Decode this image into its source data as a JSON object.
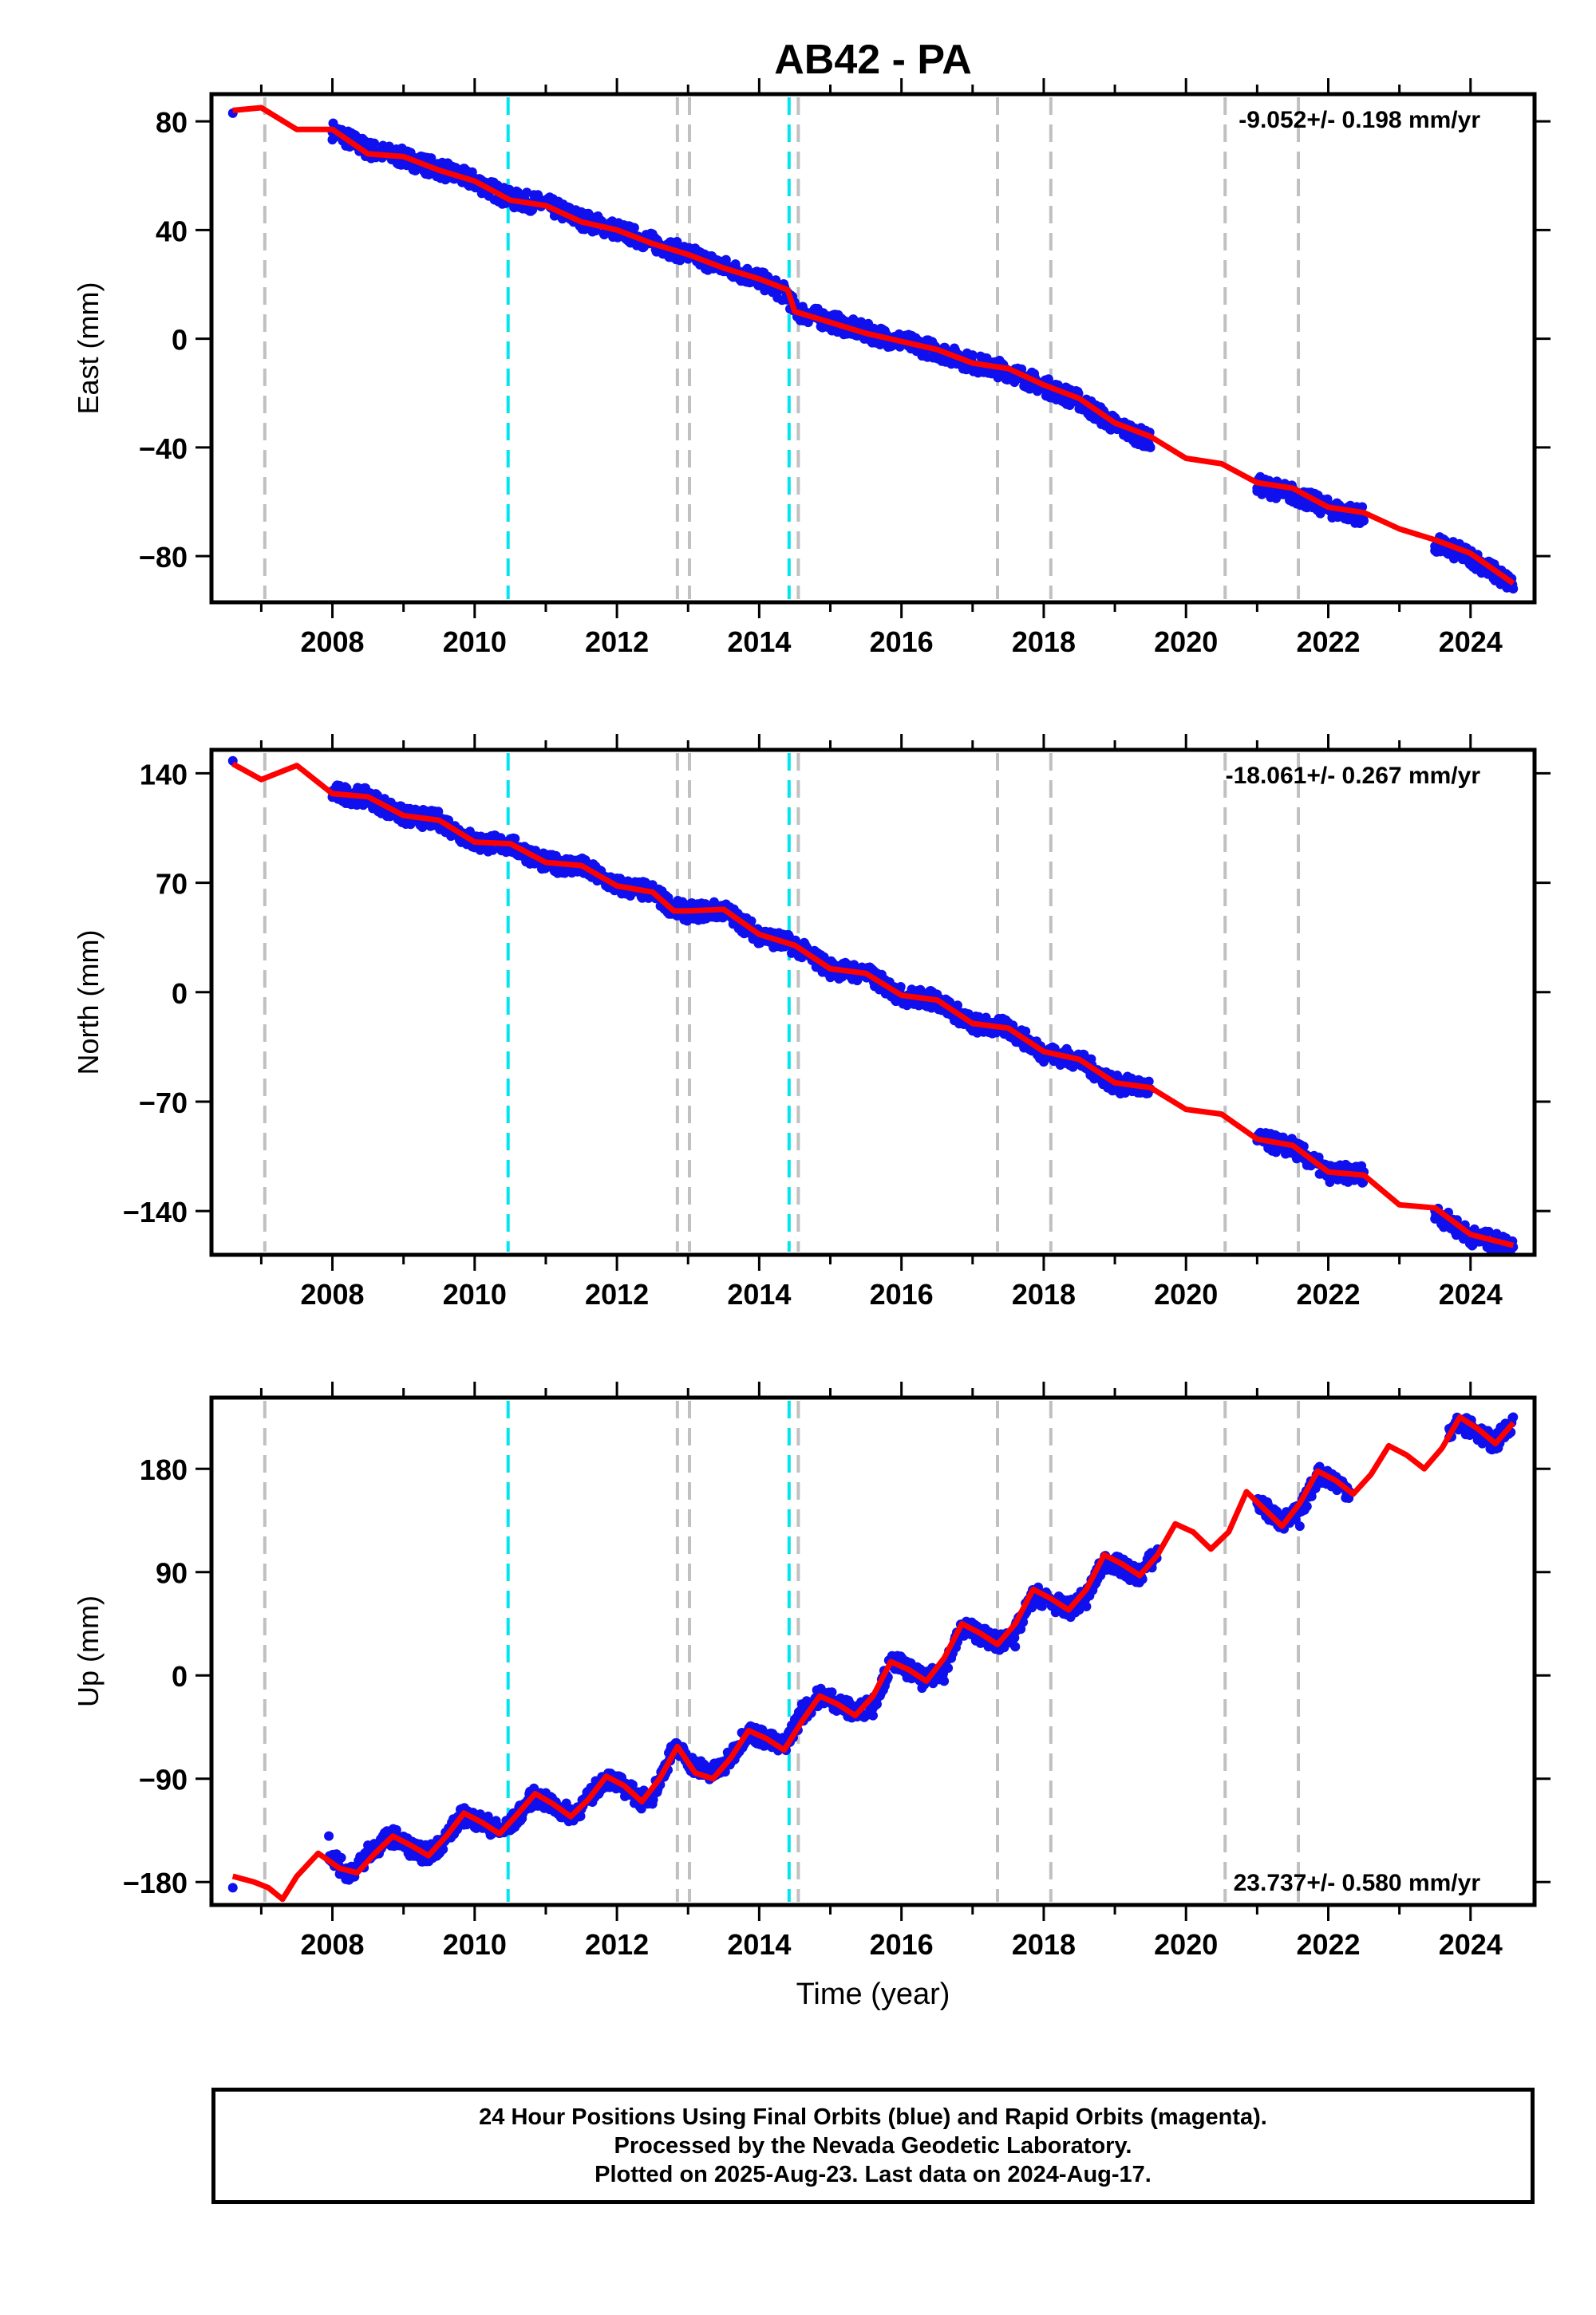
{
  "title": "AB42 - PA",
  "x_axis_label": "Time (year)",
  "x_ticks": [
    2008,
    2010,
    2012,
    2014,
    2016,
    2018,
    2020,
    2022,
    2024
  ],
  "colors": {
    "data": "#1010ee",
    "model": "#ff0000",
    "equipment_event": "#c0c0c0",
    "earthquake_event": "#00e5ee",
    "frame": "#000000"
  },
  "footer": {
    "line1": "24 Hour Positions Using Final Orbits (blue) and Rapid Orbits (magenta).",
    "line2": "Processed by the Nevada Geodetic Laboratory.",
    "line3": "Plotted on 2025-Aug-23. Last data on 2024-Aug-17."
  },
  "chart_data": [
    {
      "type": "scatter",
      "component": "east",
      "ylabel": "East (mm)",
      "rate_text": "-9.052+/- 0.198 mm/yr",
      "rate_position": "top-right",
      "xlim": [
        2006.3,
        2024.9
      ],
      "ylim": [
        -97,
        90
      ],
      "y_ticks": [
        -80,
        -40,
        0,
        40,
        80
      ],
      "event_lines_gray": [
        2007.05,
        2012.85,
        2013.02,
        2014.55,
        2017.35,
        2018.1,
        2020.55,
        2021.58
      ],
      "event_lines_cyan": [
        2010.47,
        2014.42
      ],
      "series": [
        {
          "name": "24 Hour Positions",
          "style": "points",
          "x": [
            2006.6,
            2008.0,
            2008.5,
            2009.0,
            2009.5,
            2010.0,
            2010.5,
            2011.0,
            2011.5,
            2012.0,
            2012.5,
            2013.0,
            2013.5,
            2014.0,
            2014.5,
            2015.0,
            2015.5,
            2016.0,
            2016.5,
            2017.0,
            2017.5,
            2018.0,
            2018.5,
            2019.0,
            2019.5,
            2021.0,
            2021.5,
            2022.0,
            2022.5,
            2023.5,
            2024.0,
            2024.6
          ],
          "y": [
            83,
            76,
            72,
            66,
            63,
            58,
            52,
            50,
            45,
            40,
            36,
            31,
            27,
            22,
            11,
            7,
            3,
            -1,
            -5,
            -9,
            -13,
            -18,
            -24,
            -33,
            -40,
            -55,
            -60,
            -63,
            -67,
            -78,
            -82,
            -92
          ]
        },
        {
          "name": "Model",
          "style": "line",
          "x": [
            2006.6,
            2007.0,
            2007.5,
            2008.0,
            2008.5,
            2009.0,
            2009.5,
            2010.0,
            2010.5,
            2011.0,
            2011.5,
            2012.0,
            2012.5,
            2013.0,
            2013.5,
            2014.0,
            2014.4,
            2014.5,
            2015.0,
            2015.5,
            2016.0,
            2016.5,
            2017.0,
            2017.5,
            2018.0,
            2018.5,
            2019.0,
            2019.5,
            2020.0,
            2020.5,
            2021.0,
            2021.5,
            2022.0,
            2022.5,
            2023.0,
            2023.5,
            2024.0,
            2024.6
          ],
          "y": [
            84,
            85,
            77,
            77,
            68,
            67,
            62,
            58,
            51,
            49,
            43,
            40,
            35,
            31,
            26,
            22,
            18,
            10,
            6,
            2,
            -1,
            -4,
            -9,
            -11,
            -17,
            -22,
            -31,
            -36,
            -44,
            -46,
            -53,
            -55,
            -62,
            -64,
            -70,
            -74,
            -79,
            -90
          ]
        }
      ]
    },
    {
      "type": "scatter",
      "component": "north",
      "ylabel": "North (mm)",
      "rate_text": "-18.061+/- 0.267 mm/yr",
      "rate_position": "top-right",
      "xlim": [
        2006.3,
        2024.9
      ],
      "ylim": [
        -168,
        155
      ],
      "y_ticks": [
        -140,
        -70,
        0,
        70,
        140
      ],
      "event_lines_gray": [
        2007.05,
        2012.85,
        2013.02,
        2014.55,
        2017.35,
        2018.1,
        2020.55,
        2021.58
      ],
      "event_lines_cyan": [
        2010.47,
        2014.42
      ],
      "series": [
        {
          "name": "24 Hour Positions",
          "style": "points",
          "x": [
            2006.6,
            2008.0,
            2008.5,
            2009.0,
            2009.5,
            2010.0,
            2010.5,
            2011.0,
            2011.5,
            2012.0,
            2012.5,
            2013.0,
            2013.5,
            2014.0,
            2014.5,
            2015.0,
            2015.5,
            2016.0,
            2016.5,
            2017.0,
            2017.5,
            2018.0,
            2018.5,
            2019.0,
            2019.5,
            2021.0,
            2021.5,
            2022.0,
            2022.5,
            2023.5,
            2024.0,
            2024.6
          ],
          "y": [
            148,
            128,
            124,
            112,
            110,
            96,
            93,
            82,
            80,
            68,
            64,
            50,
            52,
            36,
            30,
            15,
            12,
            -3,
            -5,
            -21,
            -23,
            -40,
            -44,
            -60,
            -62,
            -95,
            -101,
            -117,
            -115,
            -145,
            -158,
            -163
          ]
        },
        {
          "name": "Model",
          "style": "line",
          "x": [
            2006.6,
            2007.0,
            2007.5,
            2008.0,
            2008.5,
            2009.0,
            2009.5,
            2010.0,
            2010.5,
            2011.0,
            2011.5,
            2012.0,
            2012.5,
            2012.8,
            2013.0,
            2013.5,
            2014.0,
            2014.5,
            2015.0,
            2015.5,
            2016.0,
            2016.5,
            2017.0,
            2017.5,
            2018.0,
            2018.5,
            2019.0,
            2019.5,
            2020.0,
            2020.5,
            2021.0,
            2021.5,
            2022.0,
            2022.5,
            2023.0,
            2023.5,
            2024.0,
            2024.6
          ],
          "y": [
            146,
            136,
            145,
            127,
            125,
            113,
            110,
            96,
            95,
            83,
            81,
            68,
            64,
            52,
            52,
            53,
            37,
            30,
            15,
            12,
            -2,
            -5,
            -20,
            -23,
            -38,
            -43,
            -58,
            -61,
            -75,
            -78,
            -94,
            -98,
            -115,
            -117,
            -136,
            -138,
            -155,
            -162
          ]
        }
      ]
    },
    {
      "type": "scatter",
      "component": "up",
      "ylabel": "Up (mm)",
      "rate_text": "23.737+/- 0.580 mm/yr",
      "rate_position": "bottom-right",
      "xlim": [
        2006.3,
        2024.9
      ],
      "ylim": [
        -200,
        242
      ],
      "y_ticks": [
        -180,
        -90,
        0,
        90,
        180
      ],
      "event_lines_gray": [
        2007.05,
        2012.85,
        2013.02,
        2014.55,
        2017.35,
        2018.1,
        2020.55,
        2021.58
      ],
      "event_lines_cyan": [
        2010.47,
        2014.42
      ],
      "series": [
        {
          "name": "24 Hour Positions",
          "style": "points",
          "x": [
            2006.6,
            2007.95,
            2008.2,
            2008.5,
            2008.8,
            2009.2,
            2009.5,
            2009.8,
            2010.2,
            2010.5,
            2010.8,
            2011.2,
            2011.5,
            2011.8,
            2012.2,
            2012.5,
            2012.75,
            2013.5,
            2013.8,
            2014.3,
            2014.6,
            2014.9,
            2015.3,
            2015.6,
            2015.9,
            2016.3,
            2016.6,
            2016.9,
            2017.3,
            2017.6,
            2017.9,
            2018.3,
            2018.6,
            2018.9,
            2019.3,
            2019.6,
            2021.0,
            2021.3,
            2021.6,
            2021.9,
            2022.3,
            2023.7,
            2024.0,
            2024.3,
            2024.6
          ],
          "y": [
            -185,
            -140,
            -175,
            -148,
            -138,
            -158,
            -150,
            -125,
            -128,
            -135,
            -108,
            -118,
            -116,
            -90,
            -102,
            -112,
            -65,
            -80,
            -50,
            -60,
            -25,
            -15,
            -28,
            -35,
            15,
            -5,
            -5,
            40,
            30,
            25,
            65,
            57,
            60,
            95,
            85,
            110,
            150,
            140,
            130,
            175,
            160,
            215,
            210,
            200,
            225
          ]
        },
        {
          "name": "Model",
          "style": "line",
          "x": [
            2006.6,
            2006.9,
            2007.1,
            2007.3,
            2007.5,
            2007.8,
            2008.1,
            2008.35,
            2008.6,
            2008.85,
            2009.1,
            2009.35,
            2009.6,
            2009.85,
            2010.1,
            2010.35,
            2010.6,
            2010.85,
            2011.1,
            2011.35,
            2011.6,
            2011.85,
            2012.1,
            2012.35,
            2012.6,
            2012.85,
            2013.1,
            2013.35,
            2013.6,
            2013.85,
            2014.1,
            2014.35,
            2014.6,
            2014.85,
            2015.1,
            2015.35,
            2015.6,
            2015.85,
            2016.1,
            2016.35,
            2016.6,
            2016.85,
            2017.1,
            2017.35,
            2017.6,
            2017.85,
            2018.1,
            2018.35,
            2018.6,
            2018.85,
            2019.1,
            2019.35,
            2019.6,
            2019.85,
            2020.1,
            2020.35,
            2020.6,
            2020.85,
            2021.1,
            2021.35,
            2021.6,
            2021.85,
            2022.1,
            2022.35,
            2022.6,
            2022.85,
            2023.1,
            2023.35,
            2023.6,
            2023.85,
            2024.1,
            2024.35,
            2024.6
          ],
          "y": [
            -175,
            -180,
            -185,
            -195,
            -175,
            -155,
            -168,
            -172,
            -155,
            -140,
            -148,
            -157,
            -140,
            -120,
            -128,
            -138,
            -121,
            -103,
            -112,
            -123,
            -108,
            -88,
            -96,
            -110,
            -90,
            -62,
            -85,
            -90,
            -72,
            -48,
            -55,
            -65,
            -40,
            -18,
            -25,
            -35,
            -18,
            12,
            5,
            -5,
            15,
            45,
            37,
            27,
            45,
            75,
            67,
            57,
            75,
            105,
            97,
            87,
            105,
            132,
            125,
            110,
            125,
            160,
            145,
            130,
            150,
            178,
            170,
            158,
            175,
            200,
            192,
            180,
            198,
            225,
            215,
            202,
            220
          ]
        }
      ]
    }
  ]
}
